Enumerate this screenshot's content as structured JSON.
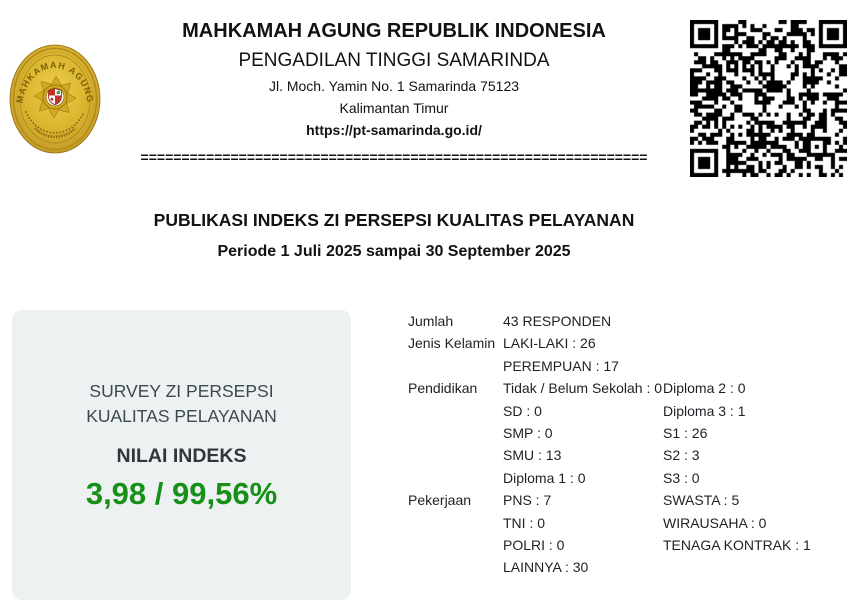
{
  "letterhead": {
    "org_name": "MAHKAMAH AGUNG REPUBLIK INDONESIA",
    "office_name": "PENGADILAN TINGGI SAMARINDA",
    "address_line1": "Jl. Moch. Yamin No. 1 Samarinda 75123",
    "address_line2": "Kalimantan Timur",
    "website": "https://pt-samarinda.go.id/",
    "separator": "=============================================================="
  },
  "publication": {
    "title": "PUBLIKASI INDEKS ZI PERSEPSI KUALITAS PELAYANAN",
    "period": "Periode 1 Juli 2025 sampai 30 September 2025"
  },
  "index_card": {
    "survey_line1": "SURVEY ZI PERSEPSI",
    "survey_line2": "KUALITAS PELAYANAN",
    "index_label": "NILAI INDEKS",
    "index_value": "3,98 / 99,56%",
    "value_color": "#169016",
    "card_background": "#edf1f2"
  },
  "respondent_stats": {
    "rows": [
      {
        "label": "Jumlah",
        "col1": "43 RESPONDEN",
        "col2": ""
      },
      {
        "label": "Jenis Kelamin",
        "col1": "LAKI-LAKI : 26",
        "col2": ""
      },
      {
        "label": "",
        "col1": "PEREMPUAN : 17",
        "col2": ""
      },
      {
        "label": "Pendidikan",
        "col1": "Tidak / Belum Sekolah : 0",
        "col2": "Diploma 2 : 0"
      },
      {
        "label": "",
        "col1": "SD : 0",
        "col2": "Diploma 3 : 1"
      },
      {
        "label": "",
        "col1": "SMP : 0",
        "col2": "S1 : 26"
      },
      {
        "label": "",
        "col1": "SMU : 13",
        "col2": "S2 : 3"
      },
      {
        "label": "",
        "col1": "Diploma 1 : 0",
        "col2": "S3 : 0"
      },
      {
        "label": "Pekerjaan",
        "col1": "PNS : 7",
        "col2": "SWASTA : 5"
      },
      {
        "label": "",
        "col1": "TNI : 0",
        "col2": "WIRAUSAHA : 0"
      },
      {
        "label": "",
        "col1": "POLRI : 0",
        "col2": "TENAGA KONTRAK : 1"
      },
      {
        "label": "",
        "col1": "LAINNYA : 30",
        "col2": ""
      }
    ]
  },
  "icons": {
    "logo": "mahkamah-agung-court-seal",
    "logo_text": "MAHKAMAH AGUNG",
    "logo_gold": "#d9b32e",
    "qr": "qr-code"
  }
}
